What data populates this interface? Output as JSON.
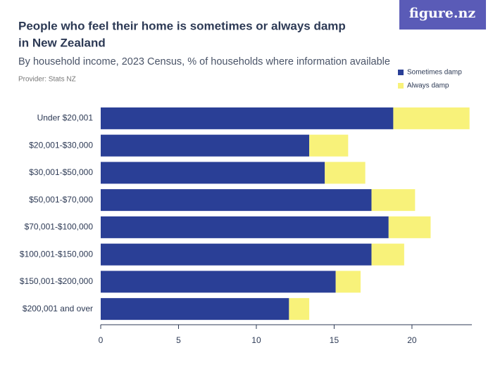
{
  "logo": "figure.nz",
  "chart_data": {
    "type": "stacked-barh",
    "title": [
      "People who feel their home is sometimes or always damp",
      "in New Zealand"
    ],
    "subtitle": "By household income, 2023 Census, % of households where information available",
    "provider": "Provider: Stats NZ",
    "categories": [
      "Under $20,001",
      "$20,001-$30,000",
      "$30,001-$50,000",
      "$50,001-$70,000",
      "$70,001-$100,000",
      "$100,001-$150,000",
      "$150,001-$200,000",
      "$200,001 and over"
    ],
    "series": [
      {
        "name": "Sometimes damp",
        "color": "#2a3f96",
        "values": [
          18.8,
          13.4,
          14.4,
          17.4,
          18.5,
          17.4,
          15.1,
          12.1
        ]
      },
      {
        "name": "Always damp",
        "color": "#f8f27a",
        "values": [
          4.9,
          2.5,
          2.6,
          2.8,
          2.7,
          2.1,
          1.6,
          1.3
        ]
      }
    ],
    "xlim": [
      0,
      23.85
    ],
    "xticks": [
      0,
      5,
      10,
      15,
      20
    ],
    "legend": "top-right"
  }
}
